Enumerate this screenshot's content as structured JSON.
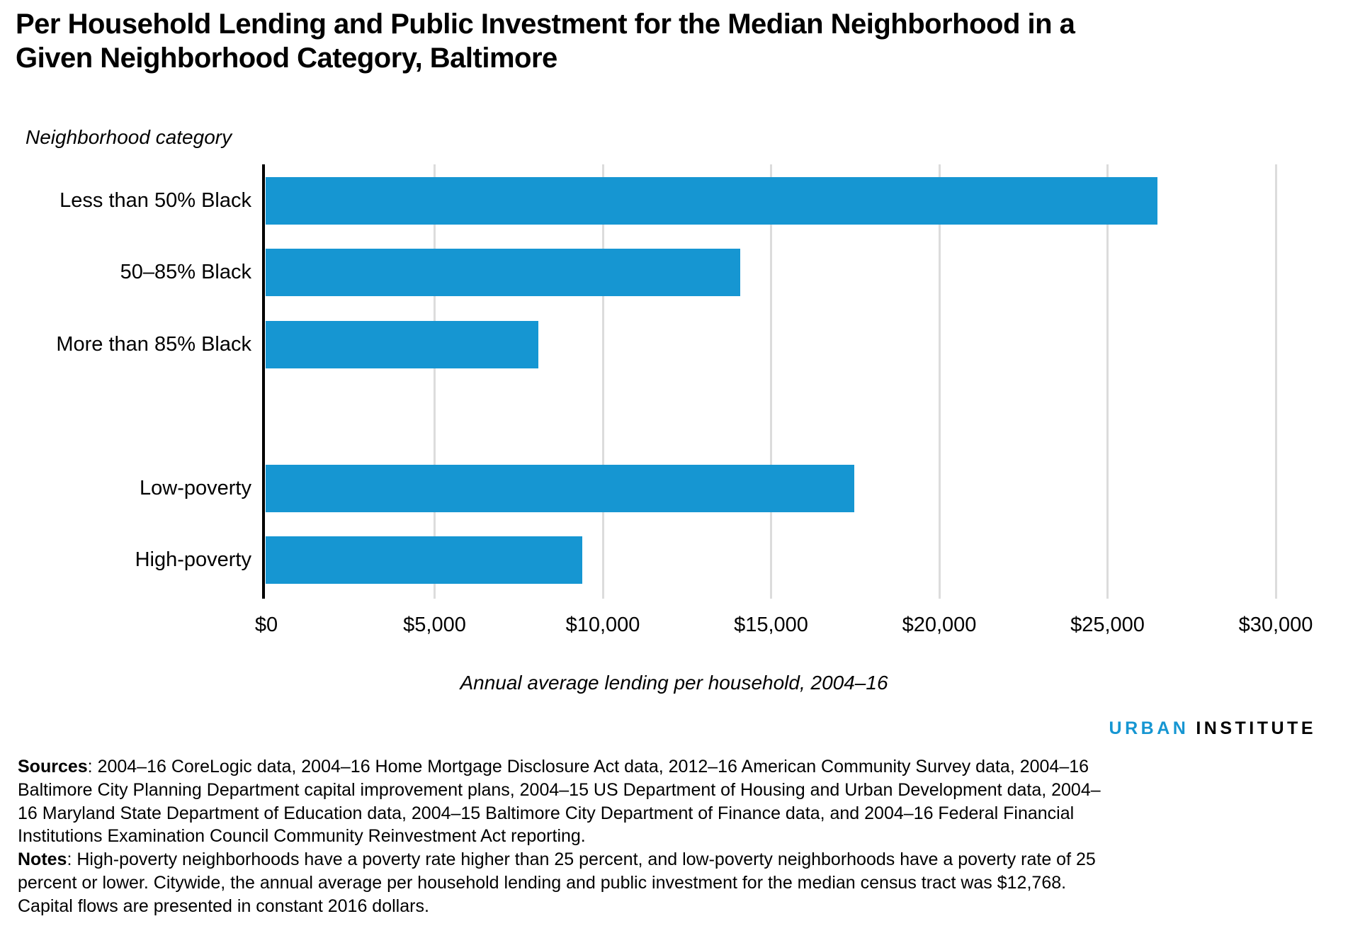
{
  "page": {
    "title_line1": "Per Household Lending and Public Investment for the Median Neighborhood in a",
    "title_line2": "Given Neighborhood Category, Baltimore"
  },
  "chart_data": {
    "type": "bar",
    "orientation": "horizontal",
    "title": "Per Household Lending and Public Investment for the Median Neighborhood in a Given Neighborhood Category, Baltimore",
    "ylabel": "Neighborhood category",
    "xlabel": "Annual average lending per household, 2004–16",
    "xlim": [
      0,
      30000
    ],
    "grid": true,
    "legend": "none",
    "bar_color": "#1696d2",
    "gridline_color": "#dcdcdc",
    "x_tick_values": [
      0,
      5000,
      10000,
      15000,
      20000,
      25000,
      30000
    ],
    "x_ticks": [
      "$0",
      "$5,000",
      "$10,000",
      "$15,000",
      "$20,000",
      "$25,000",
      "$30,000"
    ],
    "groups": [
      {
        "name": "share-black-categories",
        "bars": [
          {
            "label": "Less than 50% Black",
            "value": 26500
          },
          {
            "label": "50–85% Black",
            "value": 14100
          },
          {
            "label": "More than 85% Black",
            "value": 8100
          }
        ]
      },
      {
        "name": "poverty-categories",
        "bars": [
          {
            "label": "Low-poverty",
            "value": 17500
          },
          {
            "label": "High-poverty",
            "value": 9400
          }
        ]
      }
    ]
  },
  "branding": {
    "urban": "URBAN",
    "institute": "INSTITUTE",
    "accent_color": "#1696d2"
  },
  "footer": {
    "sources_label": "Sources",
    "sources_text": ": 2004–16 CoreLogic data, 2004–16 Home Mortgage Disclosure Act data, 2012–16 American Community Survey data, 2004–16 Baltimore City Planning Department capital improvement plans, 2004–15 US Department of Housing and Urban Development data, 2004–16 Maryland State Department of Education data, 2004–15 Baltimore City Department of Finance data, and 2004–16 Federal Financial Institutions Examination Council Community Reinvestment Act reporting.",
    "notes_label": "Notes",
    "notes_text": ": High-poverty neighborhoods have a poverty rate higher than 25 percent, and low-poverty neighborhoods have a poverty rate of 25 percent or lower. Citywide, the annual average per household lending and public investment for the median census tract was $12,768. Capital flows are presented in constant 2016 dollars."
  }
}
